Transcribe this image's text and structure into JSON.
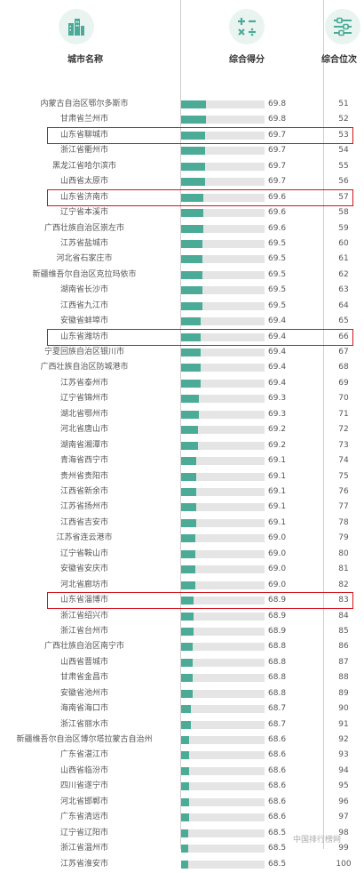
{
  "headers": {
    "city": "城市名称",
    "score": "综合得分",
    "rank": "综合位次"
  },
  "icons": {
    "city": "city-buildings-icon",
    "score": "calculator-icon",
    "rank": "sliders-icon"
  },
  "colors": {
    "bar": "#4bab97",
    "track": "#e5e5e5",
    "highlight": "#d0141b",
    "icon_bg": "#e9f4f1"
  },
  "highlighted_ranks": [
    53,
    57,
    66,
    83
  ],
  "footer": "中国排行榜网",
  "chart_data": {
    "type": "bar",
    "columns": [
      "城市名称",
      "综合得分",
      "综合位次"
    ],
    "xlim": [
      0,
      100
    ],
    "rows": [
      {
        "city": "内蒙古自治区鄂尔多斯市",
        "score": 69.8,
        "rank": 51
      },
      {
        "city": "甘肃省兰州市",
        "score": 69.8,
        "rank": 52
      },
      {
        "city": "山东省聊城市",
        "score": 69.7,
        "rank": 53
      },
      {
        "city": "浙江省衢州市",
        "score": 69.7,
        "rank": 54
      },
      {
        "city": "黑龙江省哈尔滨市",
        "score": 69.7,
        "rank": 55
      },
      {
        "city": "山西省太原市",
        "score": 69.7,
        "rank": 56
      },
      {
        "city": "山东省济南市",
        "score": 69.6,
        "rank": 57
      },
      {
        "city": "辽宁省本溪市",
        "score": 69.6,
        "rank": 58
      },
      {
        "city": "广西壮族自治区崇左市",
        "score": 69.6,
        "rank": 59
      },
      {
        "city": "江苏省盐城市",
        "score": 69.5,
        "rank": 60
      },
      {
        "city": "河北省石家庄市",
        "score": 69.5,
        "rank": 61
      },
      {
        "city": "新疆维吾尔自治区克拉玛依市",
        "score": 69.5,
        "rank": 62
      },
      {
        "city": "湖南省长沙市",
        "score": 69.5,
        "rank": 63
      },
      {
        "city": "江西省九江市",
        "score": 69.5,
        "rank": 64
      },
      {
        "city": "安徽省蚌埠市",
        "score": 69.4,
        "rank": 65
      },
      {
        "city": "山东省潍坊市",
        "score": 69.4,
        "rank": 66
      },
      {
        "city": "宁夏回族自治区银川市",
        "score": 69.4,
        "rank": 67
      },
      {
        "city": "广西壮族自治区防城港市",
        "score": 69.4,
        "rank": 68
      },
      {
        "city": "江苏省泰州市",
        "score": 69.4,
        "rank": 69
      },
      {
        "city": "辽宁省锦州市",
        "score": 69.3,
        "rank": 70
      },
      {
        "city": "湖北省鄂州市",
        "score": 69.3,
        "rank": 71
      },
      {
        "city": "河北省唐山市",
        "score": 69.2,
        "rank": 72
      },
      {
        "city": "湖南省湘潭市",
        "score": 69.2,
        "rank": 73
      },
      {
        "city": "青海省西宁市",
        "score": 69.1,
        "rank": 74
      },
      {
        "city": "贵州省贵阳市",
        "score": 69.1,
        "rank": 75
      },
      {
        "city": "江西省新余市",
        "score": 69.1,
        "rank": 76
      },
      {
        "city": "江苏省扬州市",
        "score": 69.1,
        "rank": 77
      },
      {
        "city": "江西省吉安市",
        "score": 69.1,
        "rank": 78
      },
      {
        "city": "江苏省连云港市",
        "score": 69.0,
        "rank": 79
      },
      {
        "city": "辽宁省鞍山市",
        "score": 69.0,
        "rank": 80
      },
      {
        "city": "安徽省安庆市",
        "score": 69.0,
        "rank": 81
      },
      {
        "city": "河北省廊坊市",
        "score": 69.0,
        "rank": 82
      },
      {
        "city": "山东省淄博市",
        "score": 68.9,
        "rank": 83
      },
      {
        "city": "浙江省绍兴市",
        "score": 68.9,
        "rank": 84
      },
      {
        "city": "浙江省台州市",
        "score": 68.9,
        "rank": 85
      },
      {
        "city": "广西壮族自治区南宁市",
        "score": 68.8,
        "rank": 86
      },
      {
        "city": "山西省晋城市",
        "score": 68.8,
        "rank": 87
      },
      {
        "city": "甘肃省金昌市",
        "score": 68.8,
        "rank": 88
      },
      {
        "city": "安徽省池州市",
        "score": 68.8,
        "rank": 89
      },
      {
        "city": "海南省海口市",
        "score": 68.7,
        "rank": 90
      },
      {
        "city": "浙江省丽水市",
        "score": 68.7,
        "rank": 91
      },
      {
        "city": "新疆维吾尔自治区博尔塔拉蒙古自治州",
        "score": 68.6,
        "rank": 92
      },
      {
        "city": "广东省湛江市",
        "score": 68.6,
        "rank": 93
      },
      {
        "city": "山西省临汾市",
        "score": 68.6,
        "rank": 94
      },
      {
        "city": "四川省遂宁市",
        "score": 68.6,
        "rank": 95
      },
      {
        "city": "河北省邯郸市",
        "score": 68.6,
        "rank": 96
      },
      {
        "city": "广东省清远市",
        "score": 68.6,
        "rank": 97
      },
      {
        "city": "辽宁省辽阳市",
        "score": 68.5,
        "rank": 98
      },
      {
        "city": "浙江省温州市",
        "score": 68.5,
        "rank": 99
      },
      {
        "city": "江苏省淮安市",
        "score": 68.5,
        "rank": 100
      }
    ]
  }
}
